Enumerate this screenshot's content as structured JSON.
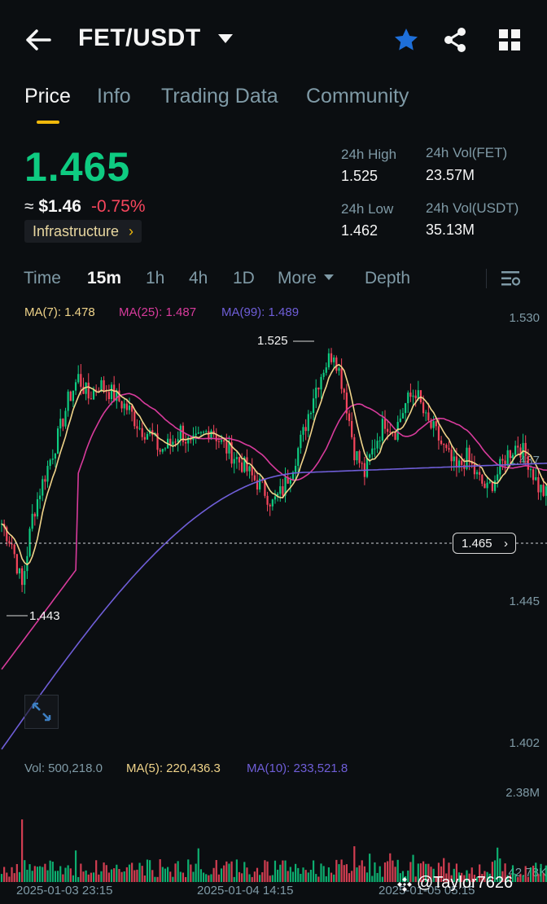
{
  "header": {
    "pair": "FET/USDT"
  },
  "tabs": [
    "Price",
    "Info",
    "Trading Data",
    "Community"
  ],
  "ticker": {
    "last_price": "1.465",
    "usd_prefix": "≈",
    "usd_value": "$1.46",
    "change_pct": "-0.75%",
    "category": "Infrastructure",
    "high_label": "24h High",
    "high_value": "1.525",
    "low_label": "24h Low",
    "low_value": "1.462",
    "vol_fet_label": "24h Vol(FET)",
    "vol_fet_value": "23.57M",
    "vol_usdt_label": "24h Vol(USDT)",
    "vol_usdt_value": "35.13M"
  },
  "intervals": [
    "Time",
    "15m",
    "1h",
    "4h",
    "1D",
    "More",
    "Depth"
  ],
  "active_interval": "15m",
  "indicators": {
    "ma7": "MA(7): 1.478",
    "ma25": "MA(25): 1.487",
    "ma99": "MA(99): 1.489",
    "vol": "Vol: 500,218.0",
    "vol_ma5": "MA(5): 220,436.3",
    "vol_ma10": "MA(10): 233,521.8"
  },
  "chart_data": {
    "type": "candlestick",
    "price_axis_ticks": [
      "1.530",
      "1.487",
      "1.445",
      "1.402"
    ],
    "volume_axis_ticks": [
      "2.38M",
      "42.78K"
    ],
    "time_ticks": [
      "2025-01-03 23:15",
      "2025-01-04 14:15",
      "2025-01-05 05:15"
    ],
    "ylim": [
      1.402,
      1.53
    ],
    "annotations": {
      "high": "1.525",
      "low": "1.443"
    },
    "current_price_tag": "1.465",
    "current_price": 1.465,
    "colors": {
      "up": "#0ecb81",
      "down": "#f6465d",
      "ma7": "#f0d48a",
      "ma25": "#d83b9c",
      "ma99": "#6f5ed8"
    }
  },
  "watermark": "@Taylor7626"
}
